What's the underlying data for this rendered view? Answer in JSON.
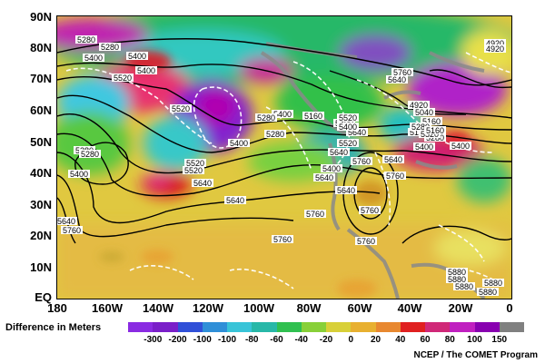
{
  "map": {
    "lat_labels": [
      "90N",
      "80N",
      "70N",
      "60N",
      "50N",
      "40N",
      "30N",
      "20N",
      "10N",
      "EQ"
    ],
    "lon_labels": [
      "180",
      "160W",
      "140W",
      "120W",
      "100W",
      "80W",
      "60W",
      "40W",
      "20W",
      "0"
    ]
  },
  "contour_labels": [
    "5280",
    "5280",
    "5400",
    "5400",
    "5400",
    "5520",
    "5520",
    "5280",
    "5280",
    "5400",
    "5520",
    "5520",
    "5640",
    "5640",
    "5400",
    "5400",
    "5640",
    "5760",
    "5640",
    "5760",
    "5760",
    "5760",
    "5760",
    "5280",
    "5280",
    "5160",
    "5400",
    "5520",
    "5640",
    "5400",
    "5760",
    "5640",
    "5640",
    "5520",
    "5400",
    "5160",
    "5280",
    "5400",
    "5520",
    "5640",
    "5760",
    "5760",
    "5640",
    "4920",
    "4920",
    "4920",
    "5040",
    "5160",
    "5280",
    "5400",
    "5160",
    "5880",
    "5880",
    "5880",
    "5880",
    "5880"
  ],
  "legend": {
    "title": "Difference in Meters",
    "values": [
      "-300",
      "-200",
      "-100",
      "-100",
      "-80",
      "-60",
      "-40",
      "-20",
      "0",
      "20",
      "40",
      "60",
      "80",
      "100",
      "150"
    ],
    "colors": [
      "#8a2be2",
      "#7a1fc9",
      "#3050d8",
      "#2f8fd8",
      "#38c4d8",
      "#28b8a8",
      "#30c050",
      "#88d038",
      "#d8d038",
      "#e8b030",
      "#e88830",
      "#e02020",
      "#d02878",
      "#c020c0",
      "#8800b0",
      "#808080"
    ]
  },
  "credit": "NCEP / The COMET Program"
}
